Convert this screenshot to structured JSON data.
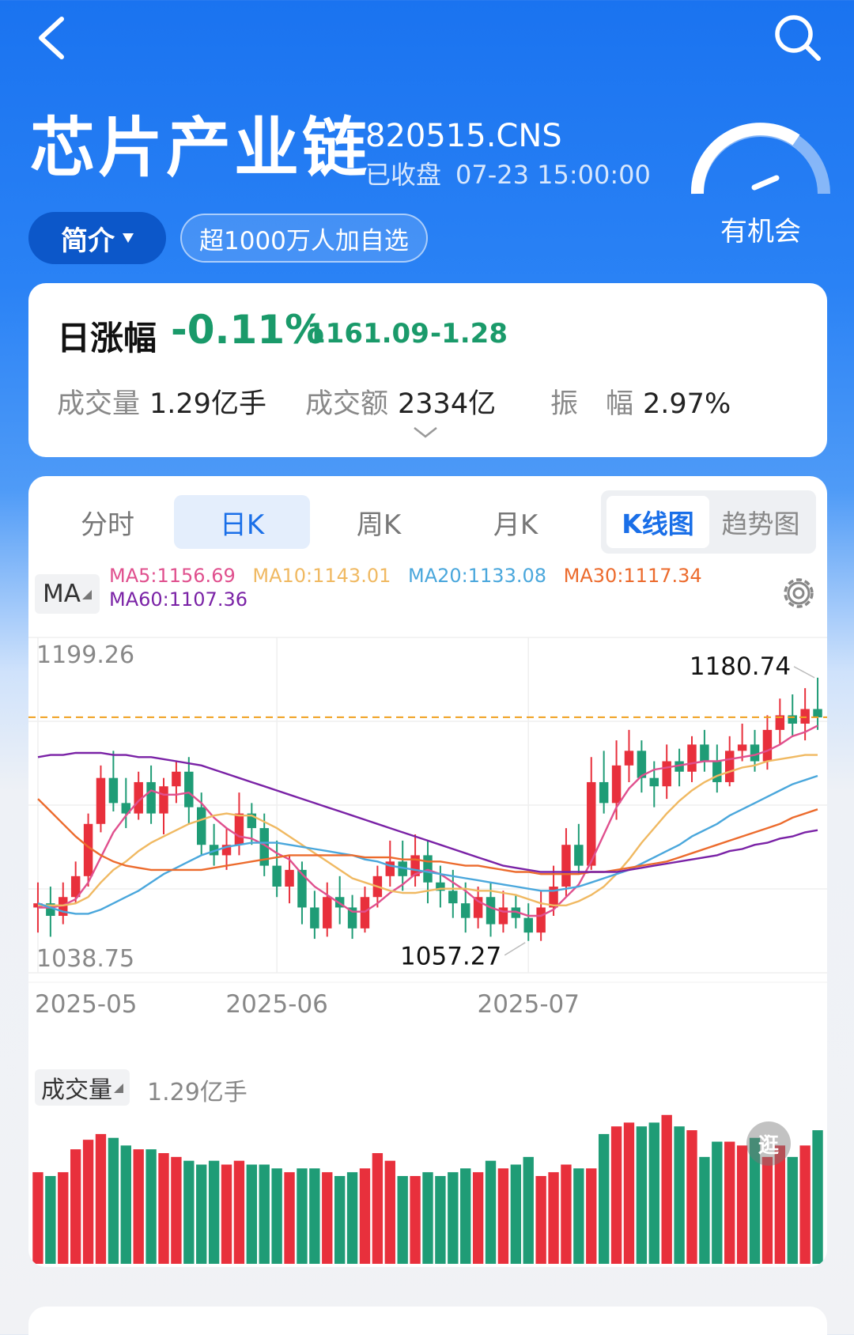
{
  "header": {
    "title": "芯片产业链",
    "code": "820515.CNS",
    "status": "已收盘",
    "datetime": "07-23 15:00:00",
    "gauge_label": "有机会",
    "intro_label": "简介",
    "fav_label": "超1000万人加自选"
  },
  "quote": {
    "label": "日涨幅",
    "pct": "-0.11%",
    "price": "1161.09",
    "change": "-1.28",
    "volume_key": "成交量",
    "volume_val": "1.29亿手",
    "amount_key": "成交额",
    "amount_val": "2334亿",
    "amp_key": "振　幅",
    "amp_val": "2.97%"
  },
  "tabs": [
    "分时",
    "日K",
    "周K",
    "月K"
  ],
  "active_tab": "日K",
  "view_toggle": [
    "K线图",
    "趋势图"
  ],
  "ma": {
    "button": "MA",
    "items": [
      {
        "text": "MA5:1156.69",
        "color": "#e0508e"
      },
      {
        "text": "MA10:1143.01",
        "color": "#f0b962"
      },
      {
        "text": "MA20:1133.08",
        "color": "#4aa7dc"
      },
      {
        "text": "MA30:1117.34",
        "color": "#ec6b2d"
      },
      {
        "text": "MA60:1107.36",
        "color": "#7a22a6"
      }
    ]
  },
  "volume_panel": {
    "button": "成交量",
    "value": "1.29亿手",
    "float_icon": "逛"
  },
  "colors": {
    "up": "#e8303c",
    "down": "#1f9c76",
    "accent": "#1a6fe8"
  },
  "chart_data": {
    "type": "candlestick",
    "y_max_label": "1199.26",
    "y_min_label": "1038.75",
    "high_label": "1180.74",
    "low_label": "1057.27",
    "current_line": 1161.09,
    "x_ticks": [
      "2025-05",
      "2025-06",
      "2025-07"
    ],
    "x_tick_index": [
      0,
      19,
      39
    ],
    "ylim": [
      1038.75,
      1199.26
    ],
    "candles": [
      [
        1070,
        1072,
        1082,
        1058
      ],
      [
        1072,
        1066,
        1080,
        1056
      ],
      [
        1066,
        1075,
        1082,
        1062
      ],
      [
        1075,
        1085,
        1092,
        1072
      ],
      [
        1085,
        1110,
        1115,
        1080
      ],
      [
        1110,
        1132,
        1138,
        1106
      ],
      [
        1132,
        1120,
        1145,
        1116
      ],
      [
        1120,
        1115,
        1132,
        1108
      ],
      [
        1115,
        1130,
        1135,
        1112
      ],
      [
        1130,
        1115,
        1138,
        1110
      ],
      [
        1115,
        1128,
        1132,
        1105
      ],
      [
        1128,
        1135,
        1140,
        1120
      ],
      [
        1135,
        1118,
        1142,
        1110
      ],
      [
        1118,
        1100,
        1125,
        1095
      ],
      [
        1100,
        1095,
        1110,
        1090
      ],
      [
        1095,
        1100,
        1108,
        1088
      ],
      [
        1100,
        1115,
        1125,
        1095
      ],
      [
        1115,
        1108,
        1120,
        1100
      ],
      [
        1108,
        1090,
        1115,
        1085
      ],
      [
        1090,
        1080,
        1102,
        1075
      ],
      [
        1080,
        1088,
        1095,
        1072
      ],
      [
        1088,
        1070,
        1092,
        1062
      ],
      [
        1070,
        1060,
        1078,
        1055
      ],
      [
        1060,
        1075,
        1082,
        1056
      ],
      [
        1075,
        1070,
        1085,
        1062
      ],
      [
        1070,
        1060,
        1076,
        1055
      ],
      [
        1060,
        1075,
        1080,
        1058
      ],
      [
        1075,
        1085,
        1090,
        1070
      ],
      [
        1085,
        1092,
        1102,
        1080
      ],
      [
        1092,
        1085,
        1102,
        1078
      ],
      [
        1085,
        1095,
        1105,
        1080
      ],
      [
        1095,
        1082,
        1102,
        1072
      ],
      [
        1082,
        1078,
        1090,
        1070
      ],
      [
        1078,
        1072,
        1088,
        1065
      ],
      [
        1072,
        1065,
        1082,
        1058
      ],
      [
        1065,
        1075,
        1080,
        1060
      ],
      [
        1075,
        1062,
        1082,
        1056
      ],
      [
        1062,
        1070,
        1078,
        1058
      ],
      [
        1070,
        1065,
        1076,
        1060
      ],
      [
        1065,
        1058,
        1072,
        1054
      ],
      [
        1058,
        1070,
        1078,
        1054
      ],
      [
        1070,
        1080,
        1090,
        1066
      ],
      [
        1080,
        1100,
        1108,
        1075
      ],
      [
        1100,
        1090,
        1110,
        1086
      ],
      [
        1090,
        1130,
        1142,
        1088
      ],
      [
        1130,
        1120,
        1145,
        1115
      ],
      [
        1120,
        1138,
        1150,
        1112
      ],
      [
        1138,
        1145,
        1155,
        1130
      ],
      [
        1145,
        1132,
        1150,
        1125
      ],
      [
        1132,
        1128,
        1140,
        1118
      ],
      [
        1128,
        1140,
        1148,
        1122
      ],
      [
        1140,
        1135,
        1146,
        1128
      ],
      [
        1135,
        1148,
        1152,
        1130
      ],
      [
        1148,
        1140,
        1155,
        1135
      ],
      [
        1140,
        1130,
        1148,
        1125
      ],
      [
        1130,
        1145,
        1152,
        1128
      ],
      [
        1145,
        1148,
        1158,
        1140
      ],
      [
        1148,
        1140,
        1155,
        1135
      ],
      [
        1140,
        1155,
        1162,
        1136
      ],
      [
        1155,
        1162,
        1170,
        1148
      ],
      [
        1162,
        1158,
        1172,
        1152
      ],
      [
        1158,
        1165,
        1175,
        1150
      ],
      [
        1165,
        1161,
        1180,
        1155
      ]
    ],
    "ma_series": [
      {
        "name": "MA5",
        "color": "#e0508e",
        "values": [
          1070,
          1070,
          1071,
          1074,
          1082,
          1094,
          1106,
          1114,
          1121,
          1126,
          1124,
          1124,
          1125,
          1120,
          1113,
          1108,
          1104,
          1103,
          1100,
          1096,
          1093,
          1086,
          1080,
          1076,
          1072,
          1068,
          1068,
          1072,
          1077,
          1081,
          1086,
          1088,
          1086,
          1082,
          1078,
          1073,
          1070,
          1068,
          1068,
          1066,
          1066,
          1069,
          1075,
          1081,
          1092,
          1105,
          1118,
          1127,
          1133,
          1136,
          1137,
          1138,
          1139,
          1140,
          1140,
          1141,
          1142,
          1143,
          1145,
          1148,
          1152,
          1154,
          1157
        ]
      },
      {
        "name": "MA10",
        "color": "#f0b962",
        "values": [
          1071,
          1071,
          1071,
          1072,
          1075,
          1082,
          1088,
          1092,
          1097,
          1101,
          1104,
          1107,
          1110,
          1112,
          1114,
          1115,
          1114,
          1114,
          1111,
          1108,
          1104,
          1100,
          1096,
          1092,
          1088,
          1084,
          1082,
          1080,
          1078,
          1077,
          1077,
          1078,
          1079,
          1079,
          1079,
          1078,
          1078,
          1077,
          1076,
          1074,
          1072,
          1071,
          1071,
          1073,
          1076,
          1080,
          1086,
          1093,
          1101,
          1108,
          1115,
          1121,
          1126,
          1130,
          1133,
          1135,
          1137,
          1138,
          1140,
          1141,
          1142,
          1143,
          1143
        ]
      },
      {
        "name": "MA20",
        "color": "#4aa7dc",
        "values": [
          1072,
          1070,
          1068,
          1067,
          1067,
          1069,
          1072,
          1075,
          1078,
          1082,
          1086,
          1089,
          1092,
          1095,
          1097,
          1099,
          1100,
          1101,
          1101,
          1101,
          1100,
          1099,
          1098,
          1097,
          1096,
          1095,
          1093,
          1092,
          1090,
          1089,
          1088,
          1087,
          1086,
          1085,
          1084,
          1083,
          1082,
          1081,
          1080,
          1079,
          1078,
          1078,
          1079,
          1080,
          1082,
          1084,
          1086,
          1088,
          1091,
          1094,
          1097,
          1100,
          1104,
          1107,
          1110,
          1114,
          1117,
          1120,
          1123,
          1126,
          1129,
          1131,
          1133
        ]
      },
      {
        "name": "MA30",
        "color": "#ec6b2d",
        "values": [
          1122,
          1116,
          1110,
          1104,
          1099,
          1095,
          1092,
          1090,
          1089,
          1088,
          1088,
          1088,
          1088,
          1088,
          1089,
          1090,
          1091,
          1092,
          1093,
          1094,
          1095,
          1095,
          1095,
          1095,
          1095,
          1095,
          1094,
          1094,
          1094,
          1093,
          1093,
          1092,
          1092,
          1091,
          1090,
          1090,
          1089,
          1088,
          1087,
          1087,
          1086,
          1086,
          1086,
          1086,
          1087,
          1087,
          1088,
          1089,
          1090,
          1091,
          1092,
          1094,
          1096,
          1098,
          1100,
          1102,
          1104,
          1106,
          1108,
          1110,
          1113,
          1115,
          1117
        ]
      },
      {
        "name": "MA60",
        "color": "#7a22a6",
        "values": [
          1142,
          1143,
          1143,
          1144,
          1144,
          1144,
          1143,
          1143,
          1142,
          1142,
          1141,
          1140,
          1139,
          1138,
          1136,
          1134,
          1132,
          1130,
          1128,
          1126,
          1124,
          1122,
          1120,
          1118,
          1116,
          1114,
          1112,
          1110,
          1108,
          1106,
          1104,
          1102,
          1100,
          1098,
          1096,
          1094,
          1092,
          1090,
          1089,
          1088,
          1087,
          1087,
          1087,
          1087,
          1087,
          1087,
          1087,
          1088,
          1089,
          1090,
          1091,
          1092,
          1093,
          1094,
          1095,
          1097,
          1098,
          1100,
          1101,
          1103,
          1104,
          1106,
          1107
        ]
      }
    ],
    "volume": [
      48,
      46,
      48,
      60,
      65,
      68,
      66,
      62,
      60,
      60,
      58,
      56,
      54,
      52,
      54,
      52,
      54,
      52,
      52,
      50,
      48,
      50,
      50,
      48,
      46,
      48,
      50,
      58,
      54,
      46,
      46,
      48,
      46,
      48,
      50,
      48,
      54,
      50,
      52,
      56,
      46,
      48,
      52,
      50,
      50,
      68,
      72,
      74,
      72,
      74,
      78,
      72,
      70,
      56,
      64,
      64,
      62,
      66,
      56,
      62,
      56,
      62,
      70
    ]
  }
}
